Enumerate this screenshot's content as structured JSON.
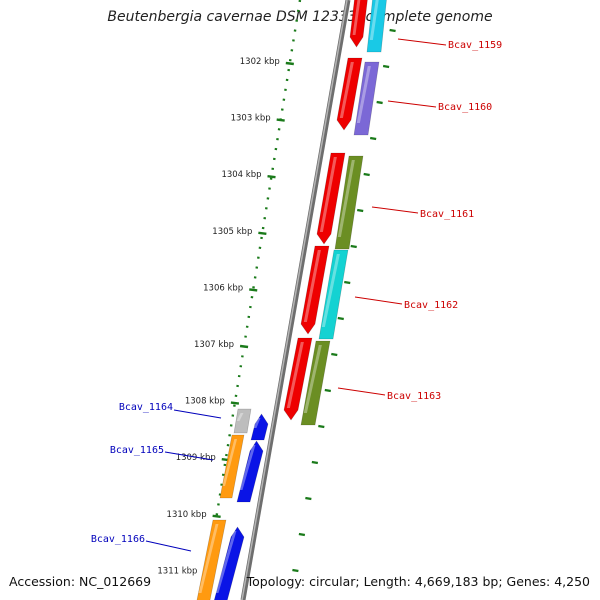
{
  "title": "Beutenbergia cavernae DSM 12333, complete genome",
  "footer": {
    "accession": "Accession: NC_012669",
    "summary": "Topology: circular; Length: 4,669,183 bp; Genes: 4,250"
  },
  "colors": {
    "backbone": "#8c8c8c",
    "scale_ticks": "#1a7a1a",
    "forward_label": "#cc0000",
    "reverse_label": "#0000bb",
    "gene_red": "#ee0000",
    "gene_cyan": "#19c9e6",
    "gene_purple": "#7b68d6",
    "gene_olive": "#6b8e23",
    "gene_teal": "#14d2d2",
    "gene_orange": "#ff9a10",
    "gene_blue": "#0a14e6",
    "gene_grey": "#bdbdbd"
  },
  "scale": {
    "unit": "kbp",
    "ticks": [
      {
        "kbp": 1302,
        "label": "1302 kbp"
      },
      {
        "kbp": 1303,
        "label": "1303 kbp"
      },
      {
        "kbp": 1304,
        "label": "1304 kbp"
      },
      {
        "kbp": 1305,
        "label": "1305 kbp"
      },
      {
        "kbp": 1306,
        "label": "1306 kbp"
      },
      {
        "kbp": 1307,
        "label": "1307 kbp"
      },
      {
        "kbp": 1308,
        "label": "1308 kbp"
      },
      {
        "kbp": 1309,
        "label": "1309 kbp"
      },
      {
        "kbp": 1310,
        "label": "1310 kbp"
      },
      {
        "kbp": 1311,
        "label": "1311 kbp"
      }
    ]
  },
  "forward_genes": [
    {
      "id": "Bcav_1159",
      "label": "Bcav_1159"
    },
    {
      "id": "Bcav_1160",
      "label": "Bcav_1160"
    },
    {
      "id": "Bcav_1161",
      "label": "Bcav_1161"
    },
    {
      "id": "Bcav_1162",
      "label": "Bcav_1162"
    },
    {
      "id": "Bcav_1163",
      "label": "Bcav_1163"
    }
  ],
  "reverse_genes": [
    {
      "id": "Bcav_1164",
      "label": "Bcav_1164"
    },
    {
      "id": "Bcav_1165",
      "label": "Bcav_1165"
    },
    {
      "id": "Bcav_1166",
      "label": "Bcav_1166"
    }
  ]
}
